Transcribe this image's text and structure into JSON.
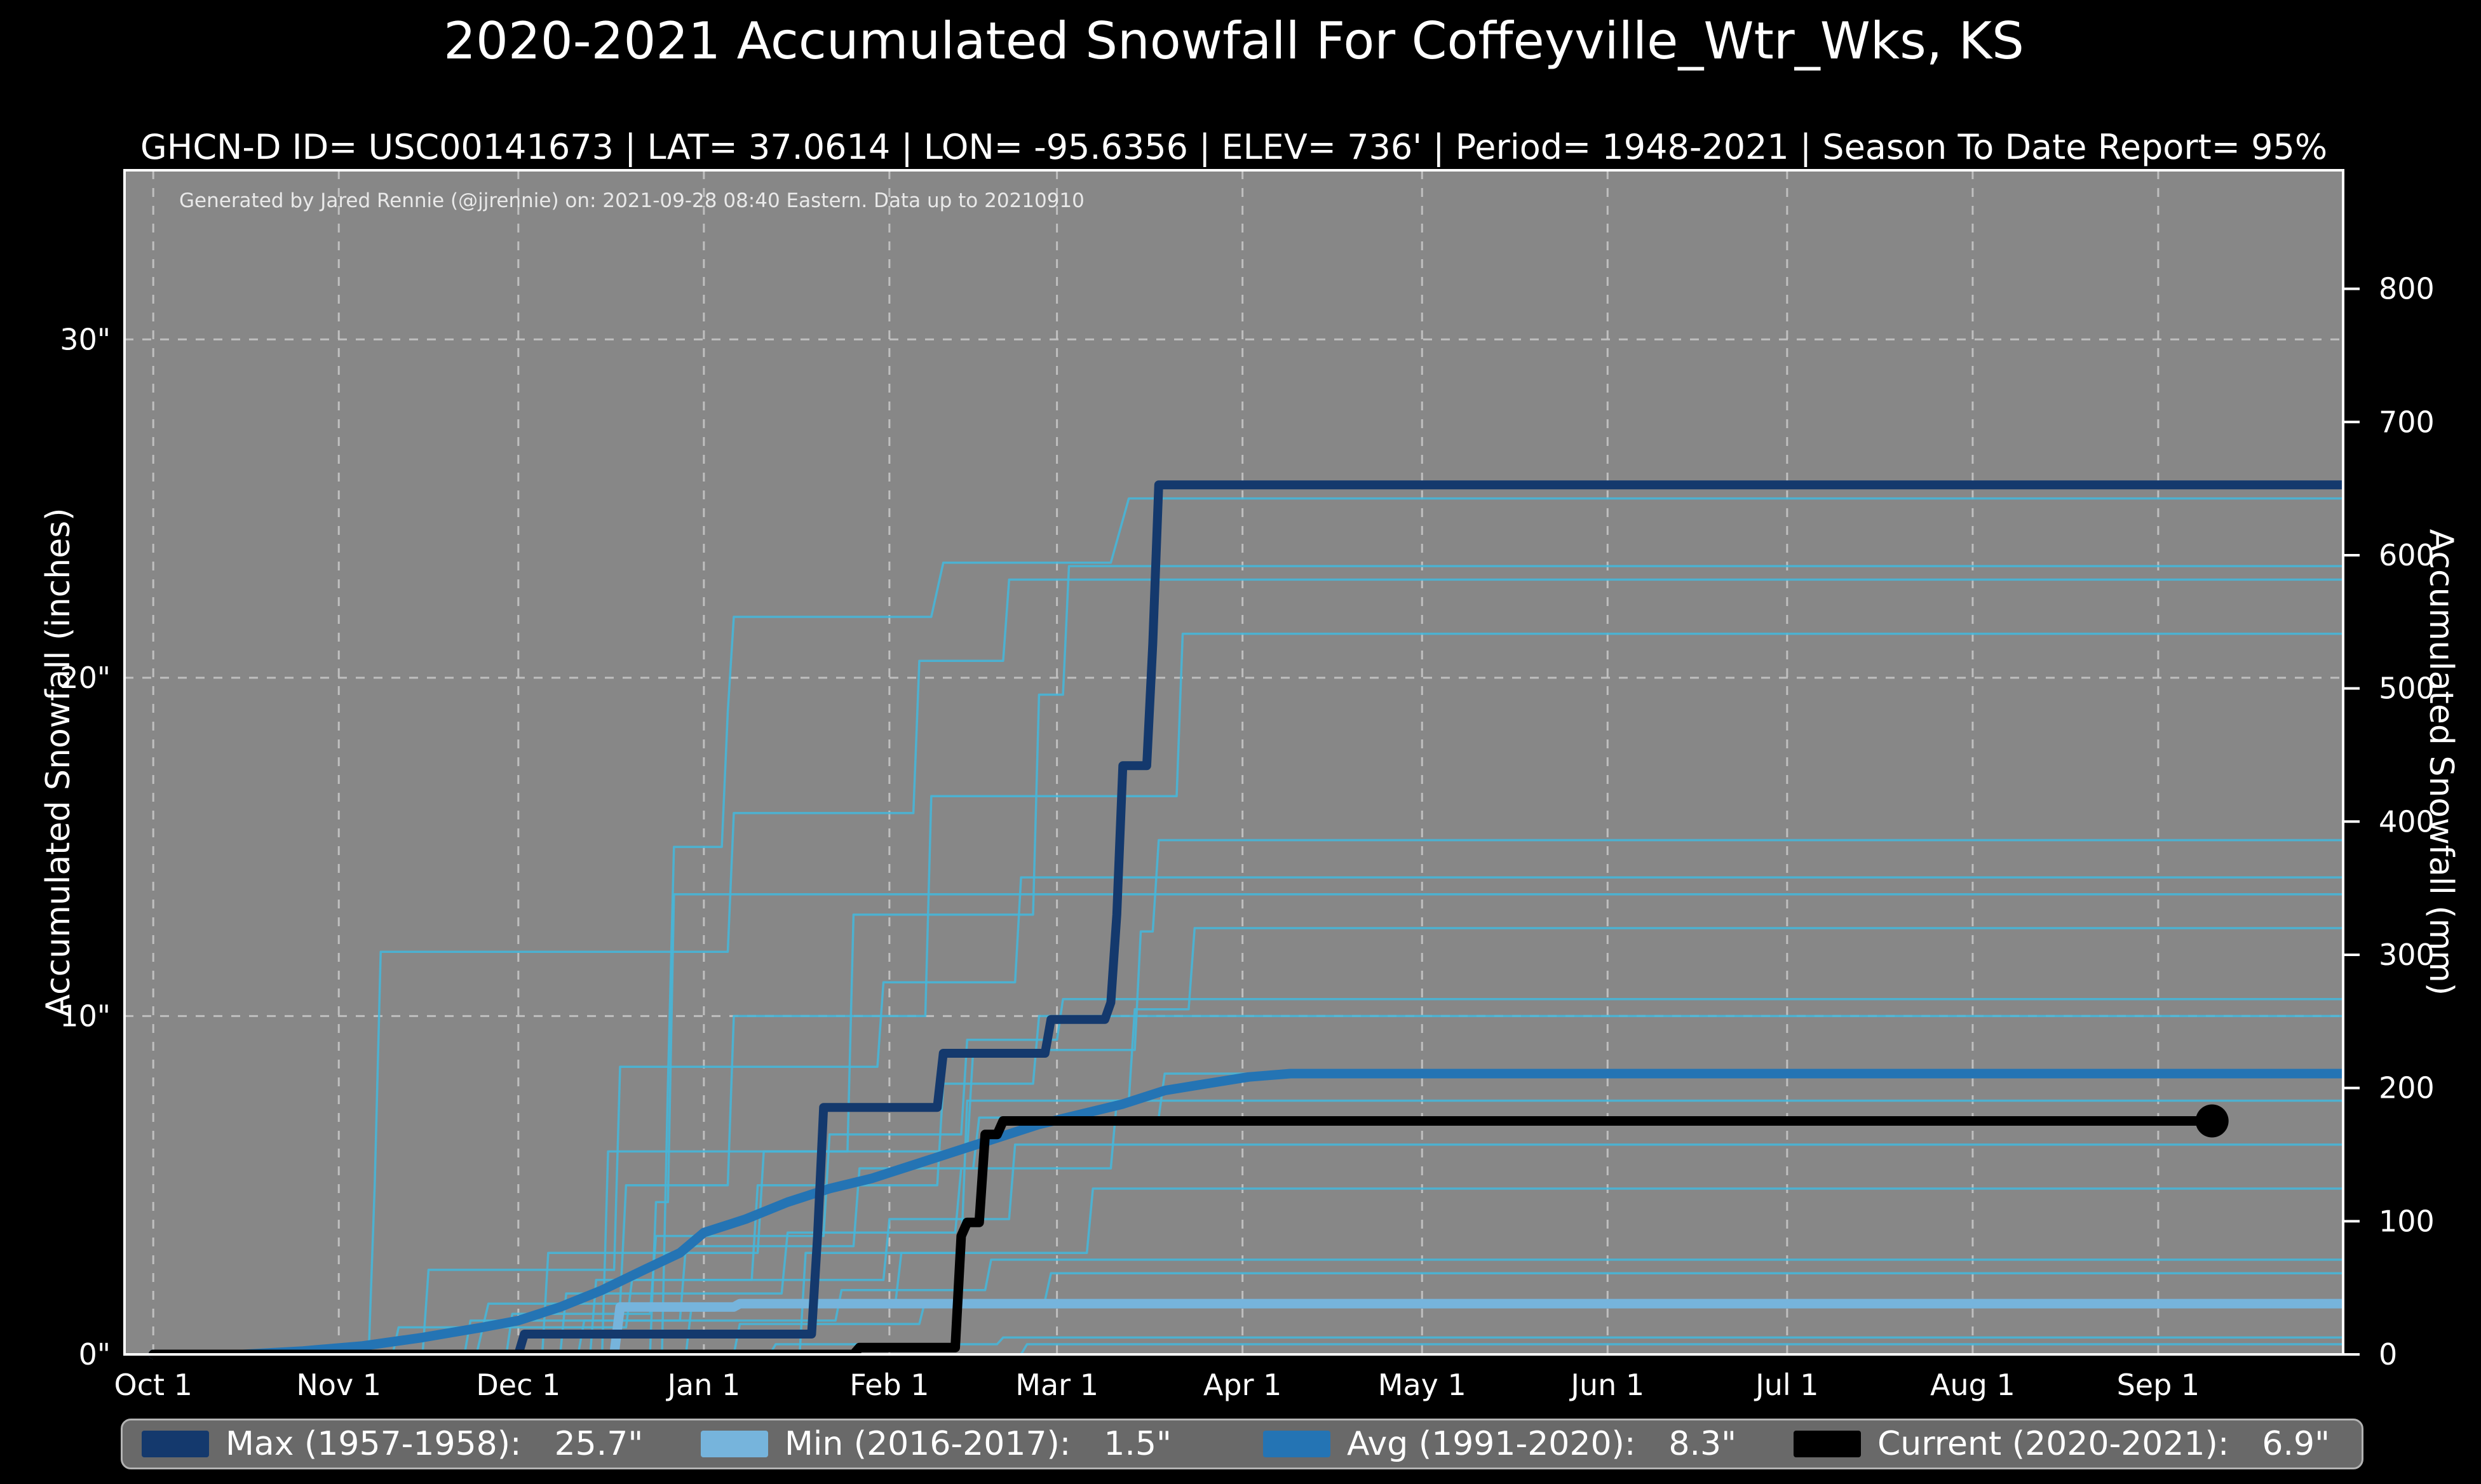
{
  "header": {
    "title": "2020-2021 Accumulated Snowfall For Coffeyville_Wtr_Wks, KS",
    "subtitle": "GHCN-D ID= USC00141673 | LAT= 37.0614 | LON= -95.6356 | ELEV= 736' | Period= 1948-2021 | Season To Date Report= 95%"
  },
  "plot": {
    "annotation": "Generated by Jared Rennie (@jjrennie) on: 2021-09-28 08:40 Eastern. Data up to 20210910"
  },
  "axes": {
    "y_left": {
      "label": "Accumulated Snowfall (inches)",
      "tick_labels": [
        "0\"",
        "10\"",
        "20\"",
        "30\""
      ],
      "tick_values": [
        0,
        10,
        20,
        30
      ]
    },
    "y_right": {
      "label": "Accumulated Snowfall (mm)",
      "tick_values": [
        0,
        100,
        200,
        300,
        400,
        500,
        600,
        700,
        800
      ]
    },
    "x": {
      "tick_labels": [
        "Oct 1",
        "Nov 1",
        "Dec 1",
        "Jan 1",
        "Feb 1",
        "Mar 1",
        "Apr 1",
        "May 1",
        "Jun 1",
        "Jul 1",
        "Aug 1",
        "Sep 1"
      ],
      "tick_days": [
        0,
        31,
        61,
        92,
        123,
        151,
        182,
        212,
        243,
        273,
        304,
        335
      ]
    }
  },
  "legend": {
    "items": [
      {
        "label": "Max (1957-1958):",
        "value": "25.7\"",
        "color": "#14396d"
      },
      {
        "label": "Min (2016-2017):",
        "value": "1.5\"",
        "color": "#76b4dc"
      },
      {
        "label": "Avg (1991-2020):",
        "value": "8.3\"",
        "color": "#2474b4"
      },
      {
        "label": "Current (2020-2021):",
        "value": "6.9\"",
        "color": "#000000"
      }
    ]
  },
  "colors": {
    "figure_bg": "#000000",
    "plot_bg": "#878787",
    "grid": "#c9c9c9",
    "spine": "#ffffff",
    "tick_text": "#ffffff",
    "background_line": "#47b6d8",
    "legend_bg": "#696969",
    "legend_border": "#b3b3b3"
  },
  "chart_data": {
    "type": "line",
    "title": "2020-2021 Accumulated Snowfall For Coffeyville_Wtr_Wks, KS",
    "xlabel": "",
    "ylabel": "Accumulated Snowfall (inches)",
    "x_domain_days": [
      -4.8,
      365.9
    ],
    "y_domain_inches": [
      0,
      35
    ],
    "grid": "dashed, x at month starts, y at 10/20/30 inches",
    "legend_position": "bottom strip",
    "series": [
      {
        "name": "Max (1957-1958)",
        "total": 25.7,
        "color": "#14396d",
        "width": 14,
        "points": [
          [
            0,
            0
          ],
          [
            61,
            0
          ],
          [
            62,
            0.6
          ],
          [
            110,
            0.6
          ],
          [
            111,
            3.5
          ],
          [
            112,
            7.3
          ],
          [
            131,
            7.3
          ],
          [
            132,
            8.9
          ],
          [
            149,
            8.9
          ],
          [
            150,
            9.9
          ],
          [
            159,
            9.9
          ],
          [
            160,
            10.4
          ],
          [
            161,
            13.0
          ],
          [
            162,
            17.4
          ],
          [
            166,
            17.4
          ],
          [
            167,
            21.0
          ],
          [
            168,
            25.7
          ],
          [
            366,
            25.7
          ]
        ]
      },
      {
        "name": "Min (2016-2017)",
        "total": 1.5,
        "color": "#76b4dc",
        "width": 15,
        "points": [
          [
            0,
            0
          ],
          [
            77,
            0
          ],
          [
            78,
            1.4
          ],
          [
            97,
            1.4
          ],
          [
            98,
            1.5
          ],
          [
            366,
            1.5
          ]
        ]
      },
      {
        "name": "Avg (1991-2020)",
        "total": 8.3,
        "color": "#2474b4",
        "width": 15,
        "points": [
          [
            0,
            0
          ],
          [
            15,
            0
          ],
          [
            25,
            0.1
          ],
          [
            35,
            0.25
          ],
          [
            45,
            0.5
          ],
          [
            55,
            0.8
          ],
          [
            61,
            1.0
          ],
          [
            68,
            1.4
          ],
          [
            75,
            1.9
          ],
          [
            82,
            2.5
          ],
          [
            88,
            3.0
          ],
          [
            92,
            3.6
          ],
          [
            99,
            4.0
          ],
          [
            106,
            4.5
          ],
          [
            113,
            4.9
          ],
          [
            120,
            5.2
          ],
          [
            127,
            5.6
          ],
          [
            134,
            6.0
          ],
          [
            141,
            6.4
          ],
          [
            148,
            6.8
          ],
          [
            155,
            7.1
          ],
          [
            162,
            7.4
          ],
          [
            169,
            7.8
          ],
          [
            176,
            8.0
          ],
          [
            183,
            8.2
          ],
          [
            190,
            8.3
          ],
          [
            366,
            8.3
          ]
        ]
      },
      {
        "name": "Current (2020-2021)",
        "total": 6.9,
        "color": "#000000",
        "width": 15,
        "end_marker_day": 344,
        "end_marker_value": 6.9,
        "end_marker_radius": 26,
        "points": [
          [
            0,
            0
          ],
          [
            117,
            0
          ],
          [
            118,
            0.2
          ],
          [
            134,
            0.2
          ],
          [
            135,
            3.5
          ],
          [
            136,
            3.9
          ],
          [
            138,
            3.9
          ],
          [
            139,
            6.5
          ],
          [
            141,
            6.5
          ],
          [
            142,
            6.9
          ],
          [
            344,
            6.9
          ]
        ]
      }
    ],
    "background_series": [
      {
        "points": [
          [
            0,
            0
          ],
          [
            85,
            0
          ],
          [
            86,
            8
          ],
          [
            87,
            15
          ],
          [
            95,
            15
          ],
          [
            96,
            19
          ],
          [
            97,
            21.8
          ],
          [
            130,
            21.8
          ],
          [
            132,
            23.4
          ],
          [
            160,
            23.4
          ],
          [
            163,
            25.3
          ],
          [
            366,
            25.3
          ]
        ]
      },
      {
        "points": [
          [
            0,
            0
          ],
          [
            54,
            0
          ],
          [
            56,
            1.5
          ],
          [
            78,
            1.5
          ],
          [
            79,
            5
          ],
          [
            96,
            5
          ],
          [
            97,
            10
          ],
          [
            129,
            10
          ],
          [
            130,
            16.5
          ],
          [
            171,
            16.5
          ],
          [
            172,
            21.3
          ],
          [
            366,
            21.3
          ]
        ]
      },
      {
        "points": [
          [
            0,
            0
          ],
          [
            75,
            0
          ],
          [
            76,
            6
          ],
          [
            116,
            6
          ],
          [
            117,
            13
          ],
          [
            147,
            13
          ],
          [
            148,
            19.5
          ],
          [
            152,
            19.5
          ],
          [
            153,
            23.3
          ],
          [
            366,
            23.3
          ]
        ]
      },
      {
        "points": [
          [
            0,
            0
          ],
          [
            36,
            0
          ],
          [
            37,
            5
          ],
          [
            38,
            11.9
          ],
          [
            96,
            11.9
          ],
          [
            97,
            16
          ],
          [
            127,
            16
          ],
          [
            128,
            20.5
          ],
          [
            142,
            20.5
          ],
          [
            143,
            22.9
          ],
          [
            366,
            22.9
          ]
        ]
      },
      {
        "points": [
          [
            0,
            0
          ],
          [
            65,
            0
          ],
          [
            66,
            3
          ],
          [
            101,
            3
          ],
          [
            102,
            6
          ],
          [
            136,
            6
          ],
          [
            137,
            9
          ],
          [
            164,
            9
          ],
          [
            165,
            12.5
          ],
          [
            167,
            12.5
          ],
          [
            168,
            15.2
          ],
          [
            366,
            15.2
          ]
        ]
      },
      {
        "points": [
          [
            0,
            0
          ],
          [
            45,
            0
          ],
          [
            46,
            2.5
          ],
          [
            77,
            2.5
          ],
          [
            78,
            8.5
          ],
          [
            121,
            8.5
          ],
          [
            122,
            11
          ],
          [
            144,
            11
          ],
          [
            145,
            14.1
          ],
          [
            366,
            14.1
          ]
        ]
      },
      {
        "points": [
          [
            0,
            0
          ],
          [
            83,
            0
          ],
          [
            84,
            4.5
          ],
          [
            86,
            4.5
          ],
          [
            87,
            13.6
          ],
          [
            366,
            13.6
          ]
        ]
      },
      {
        "points": [
          [
            0,
            0
          ],
          [
            108,
            0
          ],
          [
            109,
            3
          ],
          [
            135,
            3
          ],
          [
            136,
            7.5
          ],
          [
            163,
            7.5
          ],
          [
            164,
            10.2
          ],
          [
            173,
            10.2
          ],
          [
            174,
            12.6
          ],
          [
            366,
            12.6
          ]
        ]
      },
      {
        "points": [
          [
            0,
            0
          ],
          [
            59,
            0
          ],
          [
            60,
            1.2
          ],
          [
            83,
            1.2
          ],
          [
            84,
            3.5
          ],
          [
            112,
            3.5
          ],
          [
            113,
            6.5
          ],
          [
            135,
            6.5
          ],
          [
            136,
            9.3
          ],
          [
            151,
            9.3
          ],
          [
            152,
            10.5
          ],
          [
            366,
            10.5
          ]
        ]
      },
      {
        "points": [
          [
            0,
            0
          ],
          [
            73,
            0
          ],
          [
            74,
            2.2
          ],
          [
            100,
            2.2
          ],
          [
            101,
            5
          ],
          [
            131,
            5
          ],
          [
            132,
            8
          ],
          [
            147,
            8
          ],
          [
            148,
            10
          ],
          [
            366,
            10
          ]
        ]
      },
      {
        "points": [
          [
            0,
            0
          ],
          [
            52,
            0
          ],
          [
            53,
            1
          ],
          [
            88,
            1
          ],
          [
            89,
            3.2
          ],
          [
            117,
            3.2
          ],
          [
            118,
            5.5
          ],
          [
            137,
            5.5
          ],
          [
            138,
            7
          ],
          [
            168,
            7
          ],
          [
            169,
            8.3
          ],
          [
            366,
            8.3
          ]
        ]
      },
      {
        "points": [
          [
            0,
            0
          ],
          [
            68,
            0
          ],
          [
            69,
            1.8
          ],
          [
            105,
            1.8
          ],
          [
            106,
            3.6
          ],
          [
            134,
            3.6
          ],
          [
            135,
            5.5
          ],
          [
            160,
            5.5
          ],
          [
            161,
            7.5
          ],
          [
            366,
            7.5
          ]
        ]
      },
      {
        "points": [
          [
            0,
            0
          ],
          [
            40,
            0
          ],
          [
            41,
            0.8
          ],
          [
            79,
            0.8
          ],
          [
            80,
            2.2
          ],
          [
            122,
            2.2
          ],
          [
            123,
            4
          ],
          [
            143,
            4
          ],
          [
            144,
            6.2
          ],
          [
            366,
            6.2
          ]
        ]
      },
      {
        "points": [
          [
            0,
            0
          ],
          [
            89,
            0
          ],
          [
            90,
            1.5
          ],
          [
            124,
            1.5
          ],
          [
            125,
            3
          ],
          [
            156,
            3
          ],
          [
            157,
            4.9
          ],
          [
            366,
            4.9
          ]
        ]
      },
      {
        "points": [
          [
            0,
            0
          ],
          [
            71,
            0
          ],
          [
            72,
            1
          ],
          [
            114,
            1
          ],
          [
            115,
            1.9
          ],
          [
            139,
            1.9
          ],
          [
            140,
            2.8
          ],
          [
            366,
            2.8
          ]
        ]
      },
      {
        "points": [
          [
            0,
            0
          ],
          [
            97,
            0
          ],
          [
            98,
            0.9
          ],
          [
            128,
            0.9
          ],
          [
            129,
            1.6
          ],
          [
            149,
            1.6
          ],
          [
            150,
            2.4
          ],
          [
            366,
            2.4
          ]
        ]
      },
      {
        "points": [
          [
            0,
            0
          ],
          [
            103,
            0
          ],
          [
            104,
            0.3
          ],
          [
            141,
            0.3
          ],
          [
            142,
            0.5
          ],
          [
            366,
            0.5
          ]
        ]
      },
      {
        "points": [
          [
            0,
            0
          ],
          [
            145,
            0
          ],
          [
            146,
            0.3
          ],
          [
            366,
            0.3
          ]
        ]
      }
    ]
  }
}
